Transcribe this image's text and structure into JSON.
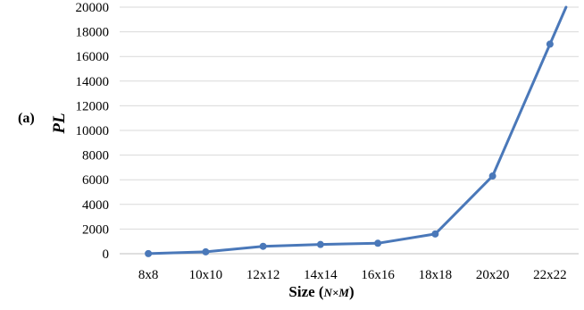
{
  "panel_label": "(a)",
  "chart_data": {
    "type": "line",
    "categories": [
      "8x8",
      "10x10",
      "12x12",
      "14x14",
      "16x16",
      "18x18",
      "20x20",
      "22x22"
    ],
    "series": [
      {
        "values": [
          10,
          150,
          600,
          750,
          850,
          1600,
          6300,
          17000
        ]
      }
    ],
    "ylim": [
      0,
      20000
    ],
    "yticks": [
      0,
      2000,
      4000,
      6000,
      8000,
      10000,
      12000,
      14000,
      16000,
      18000,
      20000
    ],
    "ylabel": "PL",
    "xlabel_main": "Size (",
    "xlabel_italic": "N×M",
    "xlabel_close": ")",
    "grid": true,
    "line_extends_above_axis": true,
    "line_color": "#4a78b9"
  }
}
